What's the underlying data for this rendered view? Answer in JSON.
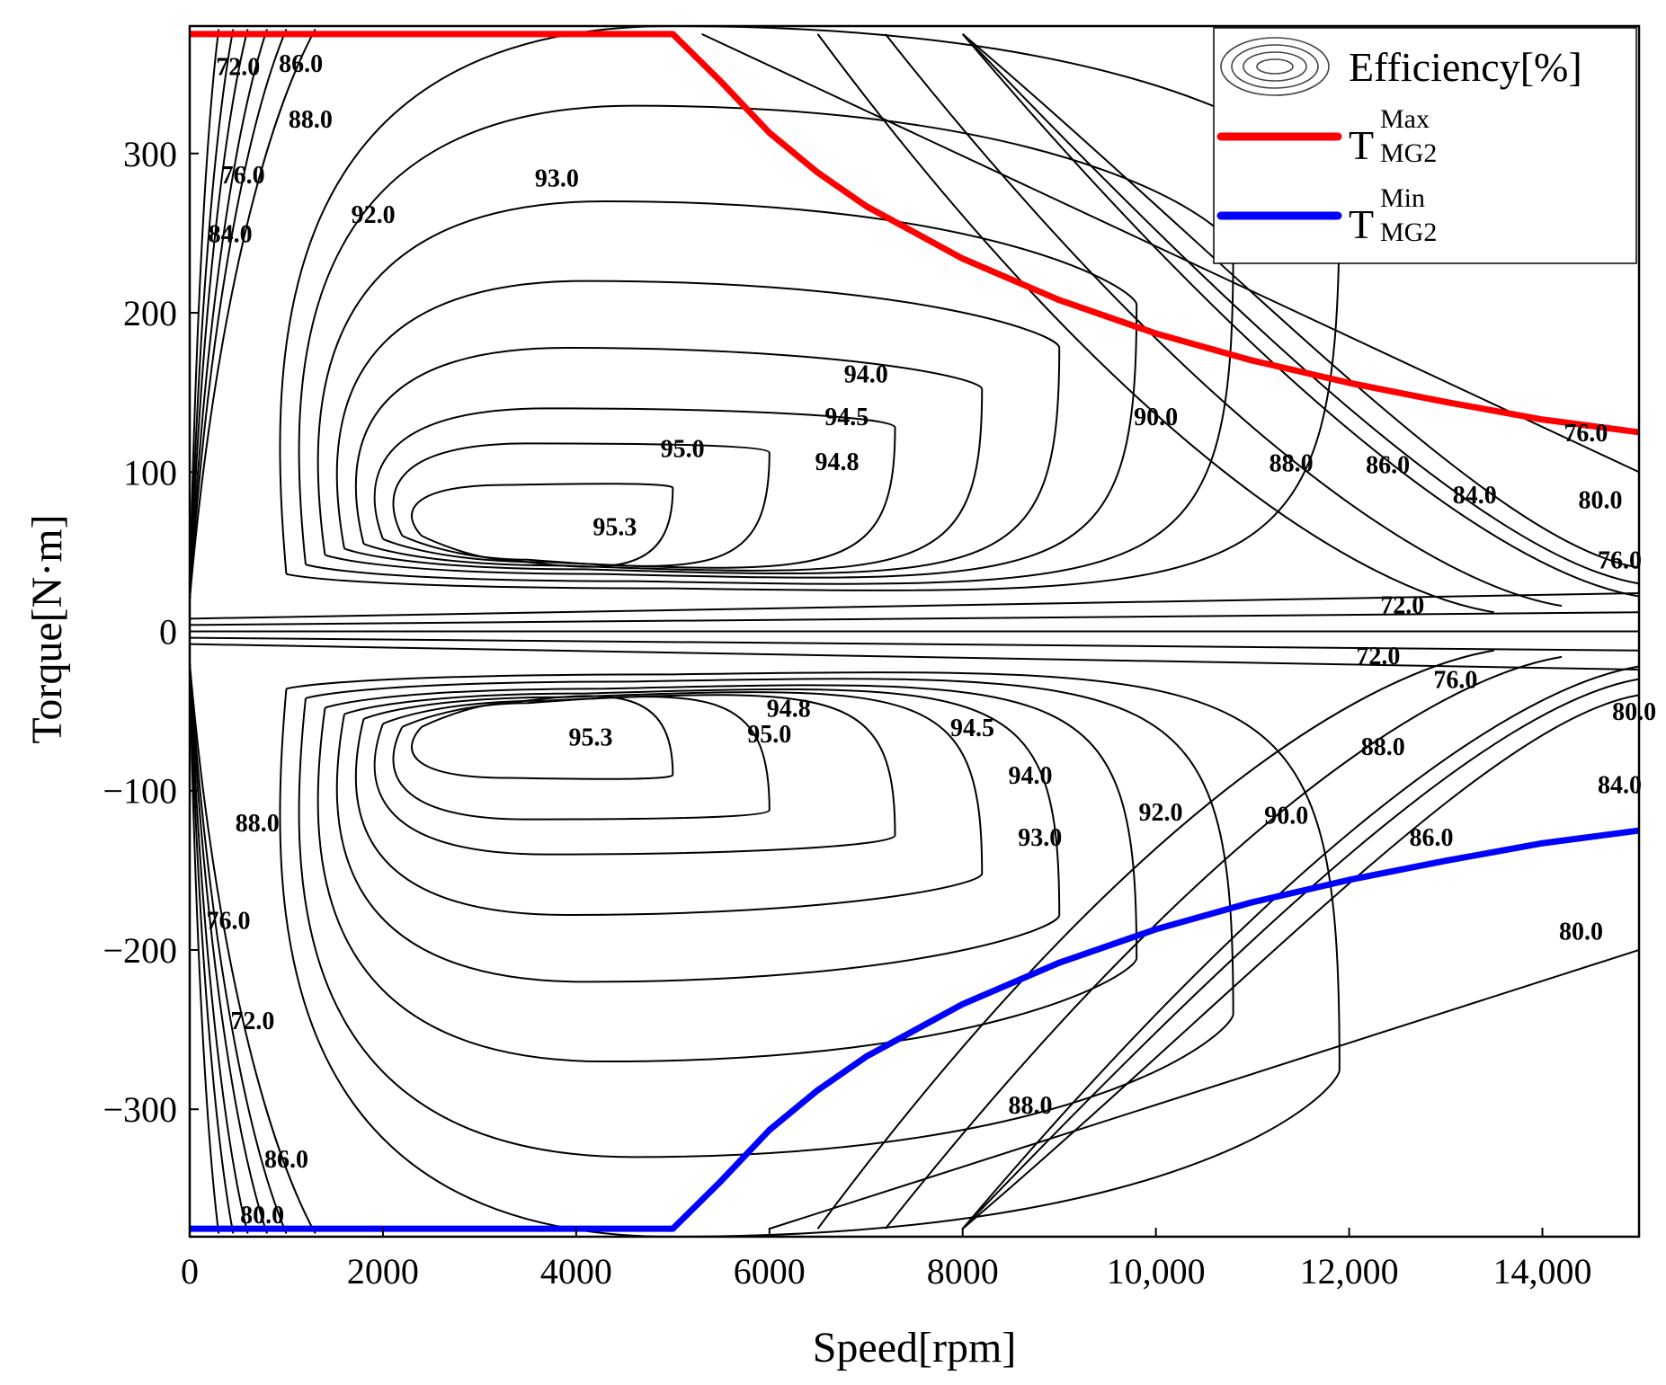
{
  "chart_data": {
    "type": "contour",
    "xlabel": "Speed[rpm]",
    "ylabel": "Torque[N·m]",
    "xlim": [
      0,
      15000
    ],
    "ylim": [
      -380,
      380
    ],
    "x_ticks": [
      0,
      2000,
      4000,
      6000,
      8000,
      10000,
      12000,
      14000
    ],
    "x_tick_labels": [
      "0",
      "2000",
      "4000",
      "6000",
      "8000",
      "10,000",
      "12,000",
      "14,000"
    ],
    "y_ticks": [
      300,
      200,
      100,
      0,
      -100,
      -200,
      -300
    ],
    "y_tick_labels": [
      "300",
      "200",
      "100",
      "0",
      "−100",
      "−200",
      "−300"
    ],
    "legend": {
      "position": "top-right",
      "entries": [
        {
          "label": "Efficiency[%]",
          "kind": "contour-lines",
          "color": "#000000"
        },
        {
          "label": "T",
          "sub": "MG2",
          "sup": "Max",
          "kind": "line",
          "color": "#ff0000"
        },
        {
          "label": "T",
          "sub": "MG2",
          "sup": "Min",
          "kind": "line",
          "color": "#0000ff"
        }
      ]
    },
    "series": [
      {
        "name": "T_MG2_Max",
        "color": "#ff0000",
        "x": [
          0,
          5000,
          5500,
          6000,
          6500,
          7000,
          8000,
          9000,
          10000,
          11000,
          12000,
          13000,
          14000,
          15000
        ],
        "y": [
          375,
          375,
          345,
          313,
          288,
          267,
          234,
          208,
          187,
          170,
          156,
          144,
          133,
          125
        ]
      },
      {
        "name": "T_MG2_Min",
        "color": "#0000ff",
        "x": [
          0,
          5000,
          5500,
          6000,
          6500,
          7000,
          8000,
          9000,
          10000,
          11000,
          12000,
          13000,
          14000,
          15000
        ],
        "y": [
          -375,
          -375,
          -345,
          -313,
          -288,
          -267,
          -234,
          -208,
          -187,
          -170,
          -156,
          -144,
          -133,
          -125
        ]
      }
    ],
    "contour_labels": [
      {
        "text": "72.0",
        "x": 500,
        "y": 355
      },
      {
        "text": "86.0",
        "x": 1150,
        "y": 357
      },
      {
        "text": "88.0",
        "x": 1250,
        "y": 322
      },
      {
        "text": "76.0",
        "x": 550,
        "y": 287
      },
      {
        "text": "84.0",
        "x": 420,
        "y": 250
      },
      {
        "text": "92.0",
        "x": 1900,
        "y": 262
      },
      {
        "text": "93.0",
        "x": 3800,
        "y": 285
      },
      {
        "text": "94.0",
        "x": 7000,
        "y": 162
      },
      {
        "text": "94.5",
        "x": 6800,
        "y": 135
      },
      {
        "text": "95.0",
        "x": 5100,
        "y": 115
      },
      {
        "text": "94.8",
        "x": 6700,
        "y": 107
      },
      {
        "text": "95.3",
        "x": 4400,
        "y": 66
      },
      {
        "text": "90.0",
        "x": 10000,
        "y": 135
      },
      {
        "text": "88.0",
        "x": 11400,
        "y": 106
      },
      {
        "text": "86.0",
        "x": 12400,
        "y": 105
      },
      {
        "text": "84.0",
        "x": 13300,
        "y": 86
      },
      {
        "text": "80.0",
        "x": 14600,
        "y": 83
      },
      {
        "text": "76.0",
        "x": 14450,
        "y": 125
      },
      {
        "text": "76.0",
        "x": 14800,
        "y": 45
      },
      {
        "text": "72.0",
        "x": 12550,
        "y": 17
      },
      {
        "text": "72.0",
        "x": 12300,
        "y": -15
      },
      {
        "text": "76.0",
        "x": 13100,
        "y": -30
      },
      {
        "text": "80.0",
        "x": 14950,
        "y": -50
      },
      {
        "text": "94.8",
        "x": 6200,
        "y": -48
      },
      {
        "text": "95.3",
        "x": 4150,
        "y": -66
      },
      {
        "text": "95.0",
        "x": 6000,
        "y": -64
      },
      {
        "text": "94.5",
        "x": 8100,
        "y": -60
      },
      {
        "text": "94.0",
        "x": 8700,
        "y": -90
      },
      {
        "text": "88.0",
        "x": 12350,
        "y": -72
      },
      {
        "text": "84.0",
        "x": 14800,
        "y": -96
      },
      {
        "text": "92.0",
        "x": 10050,
        "y": -113
      },
      {
        "text": "90.0",
        "x": 11350,
        "y": -115
      },
      {
        "text": "93.0",
        "x": 8800,
        "y": -129
      },
      {
        "text": "86.0",
        "x": 12850,
        "y": -129
      },
      {
        "text": "88.0",
        "x": 700,
        "y": -120
      },
      {
        "text": "76.0",
        "x": 400,
        "y": -181
      },
      {
        "text": "80.0",
        "x": 14400,
        "y": -188
      },
      {
        "text": "72.0",
        "x": 650,
        "y": -244
      },
      {
        "text": "88.0",
        "x": 8700,
        "y": -297
      },
      {
        "text": "86.0",
        "x": 1000,
        "y": -331
      },
      {
        "text": "80.0",
        "x": 750,
        "y": -366
      }
    ]
  }
}
